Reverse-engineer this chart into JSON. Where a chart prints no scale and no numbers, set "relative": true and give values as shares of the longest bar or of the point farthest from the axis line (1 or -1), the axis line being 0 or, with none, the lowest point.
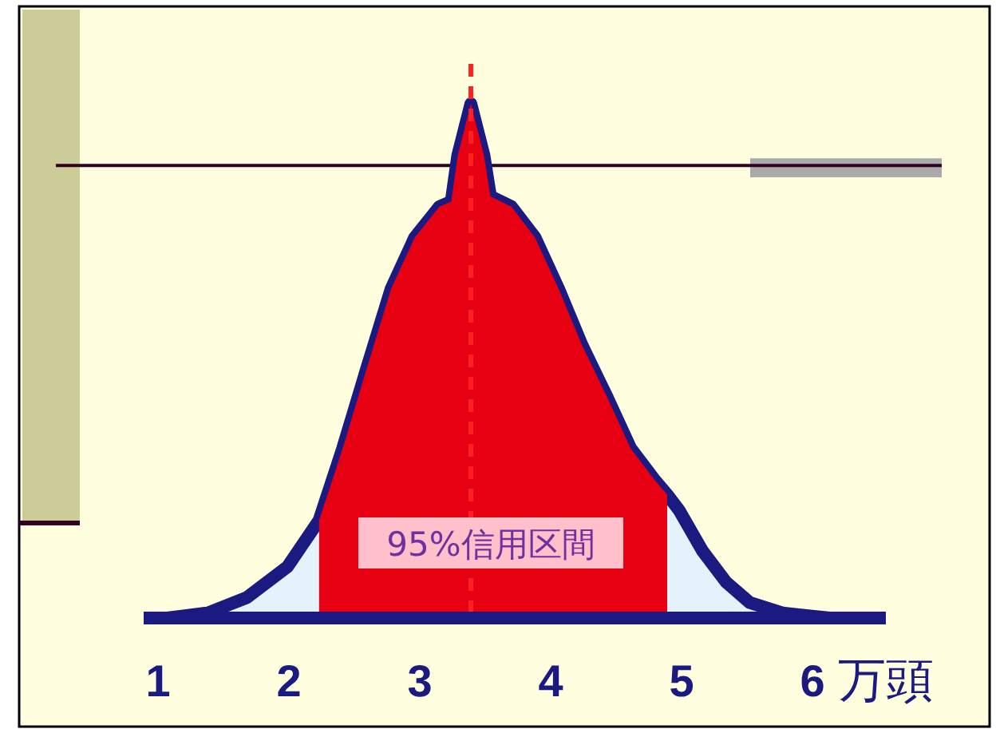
{
  "chart_data": {
    "type": "area",
    "relative": true,
    "xlim": [
      0.89,
      6.56
    ],
    "xticks": [
      1,
      2,
      3,
      4,
      5,
      6
    ],
    "xlabel": "万頭",
    "tick_labels": "x",
    "series": [
      {
        "color": "#e6f2fb",
        "x": [
          1.07,
          1.38,
          1.68,
          1.99,
          2.23,
          2.41,
          2.6,
          2.78,
          2.96,
          3.15,
          3.24,
          3.29,
          3.39,
          3.49,
          3.54,
          3.7,
          3.88,
          4.06,
          4.24,
          4.43,
          4.61,
          4.79,
          4.89,
          4.98,
          5.16,
          5.34,
          5.52,
          5.77,
          6.13
        ],
        "values": [
          0,
          0.01,
          0.04,
          0.1,
          0.19,
          0.33,
          0.49,
          0.64,
          0.74,
          0.8,
          0.81,
          0.9,
          1,
          0.9,
          0.82,
          0.8,
          0.74,
          0.64,
          0.53,
          0.43,
          0.33,
          0.27,
          0.24,
          0.21,
          0.13,
          0.07,
          0.03,
          0.01,
          0
        ]
      },
      {
        "color": "#e60012",
        "x": [
          2.23,
          2.41,
          2.6,
          2.78,
          2.96,
          3.15,
          3.24,
          3.29,
          3.39,
          3.49,
          3.54,
          3.7,
          3.88,
          4.06,
          4.24,
          4.43,
          4.61,
          4.79,
          4.89
        ],
        "values": [
          0.19,
          0.33,
          0.49,
          0.64,
          0.74,
          0.8,
          0.81,
          0.9,
          1,
          0.9,
          0.82,
          0.8,
          0.74,
          0.64,
          0.53,
          0.43,
          0.33,
          0.27,
          0.24
        ]
      }
    ],
    "ref_lines": [
      {
        "axis": "x",
        "value": 3.39,
        "color": "#ff2020",
        "line_style": "dashed"
      },
      {
        "axis": "y",
        "value": 0.88,
        "color": "#330022"
      }
    ],
    "bands": [
      {
        "axis": "y",
        "from": 0.857,
        "to": 0.894,
        "color": "#aaaaaa"
      }
    ],
    "annotations": [
      "95%信用区間"
    ]
  }
}
